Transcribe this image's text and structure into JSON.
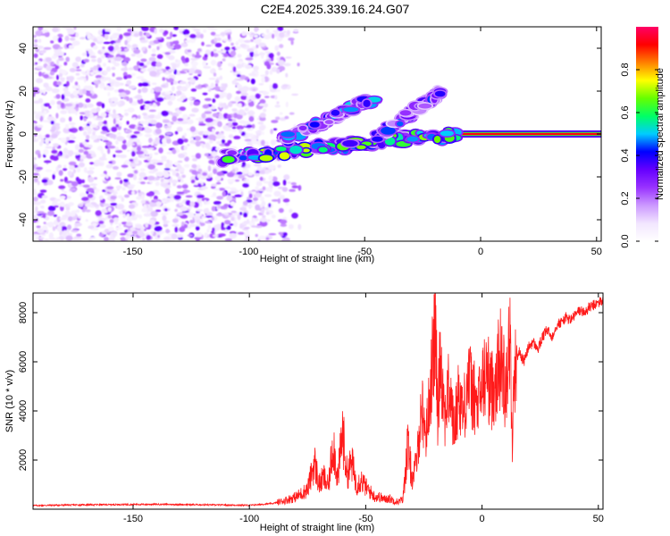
{
  "title": "C2E4.2025.339.16.24.G07",
  "colors": {
    "snr_line": "#ff1a1a",
    "axes": "#000000",
    "background": "#ffffff"
  },
  "chart_data": [
    {
      "type": "heatmap",
      "name": "spectrogram",
      "xlabel": "Height of straight line (km)",
      "ylabel": "Frequency (Hz)",
      "xlim": [
        -193,
        52
      ],
      "ylim": [
        -50,
        50
      ],
      "xticks": [
        -150,
        -100,
        -50,
        0,
        50
      ],
      "yticks": [
        -40,
        -20,
        0,
        20,
        40
      ],
      "x_tick_labels": [
        "-150",
        "-100",
        "-50",
        "0",
        "50"
      ],
      "y_tick_labels": [
        "-40",
        "-20",
        "0",
        "20",
        "40"
      ],
      "colorbar": {
        "label": "Normalized spectral amplitude",
        "range": [
          0,
          1
        ],
        "ticks": [
          0.0,
          0.2,
          0.4,
          0.6,
          0.8
        ],
        "tick_labels": [
          "0.0",
          "0.2",
          "0.4",
          "0.6",
          "0.8"
        ],
        "colormap": [
          "#ffffff",
          "#f2e6ff",
          "#cc99ff",
          "#9933ff",
          "#6600ff",
          "#0000ff",
          "#00ccff",
          "#00ff66",
          "#66ff00",
          "#ffff00",
          "#ff8000",
          "#ff0000",
          "#ff0066"
        ]
      },
      "noise_region_x": [
        -193,
        -85
      ],
      "features": [
        {
          "name": "carrier-line",
          "x": [
            -10,
            52
          ],
          "y": [
            0,
            0
          ],
          "amplitude": 1.0
        },
        {
          "name": "central-track",
          "x": [
            -113,
            -10
          ],
          "y": [
            -11,
            0
          ],
          "amplitude": 0.55
        },
        {
          "name": "upper-track-1",
          "x": [
            -85,
            -45
          ],
          "y": [
            -3,
            17
          ],
          "amplitude": 0.45
        },
        {
          "name": "upper-track-2",
          "x": [
            -45,
            -17
          ],
          "y": [
            -2,
            20
          ],
          "amplitude": 0.4
        }
      ]
    },
    {
      "type": "line",
      "name": "snr",
      "xlabel": "Height of straight line (km)",
      "ylabel": "SNR (10 * v/v)",
      "xlim": [
        -193,
        52
      ],
      "ylim": [
        0,
        8800
      ],
      "xticks": [
        -150,
        -100,
        -50,
        0,
        50
      ],
      "yticks": [
        2000,
        4000,
        6000,
        8000
      ],
      "x_tick_labels": [
        "-150",
        "-100",
        "-50",
        "0",
        "50"
      ],
      "y_tick_labels": [
        "2000",
        "4000",
        "6000",
        "8000"
      ],
      "series": [
        {
          "name": "SNR",
          "x": [
            -193,
            -170,
            -140,
            -120,
            -100,
            -90,
            -85,
            -80,
            -75,
            -72,
            -70,
            -68,
            -66,
            -64,
            -62,
            -60,
            -58,
            -56,
            -54,
            -52,
            -50,
            -48,
            -46,
            -44,
            -42,
            -40,
            -38,
            -36,
            -34,
            -32,
            -30,
            -28,
            -26,
            -24,
            -22,
            -20,
            -19,
            -18,
            -16,
            -14,
            -12,
            -10,
            -8,
            -6,
            -4,
            -2,
            0,
            2,
            4,
            6,
            8,
            10,
            12,
            13,
            14,
            16,
            18,
            20,
            22,
            24,
            26,
            28,
            30,
            32,
            34,
            36,
            38,
            40,
            42,
            44,
            46,
            48,
            50,
            52
          ],
          "y": [
            150,
            180,
            200,
            180,
            160,
            230,
            350,
            500,
            800,
            1900,
            1000,
            1300,
            900,
            2800,
            1200,
            3200,
            1400,
            1900,
            1000,
            1200,
            900,
            700,
            500,
            500,
            400,
            450,
            350,
            300,
            400,
            2600,
            1200,
            2000,
            4200,
            3000,
            5200,
            7400,
            3500,
            6600,
            3800,
            5000,
            3200,
            4800,
            3900,
            5400,
            4700,
            4100,
            5000,
            5600,
            4800,
            5400,
            6200,
            5000,
            7000,
            2500,
            6000,
            6400,
            6000,
            6600,
            6800,
            6500,
            7000,
            7300,
            7000,
            7500,
            7600,
            7800,
            7700,
            7900,
            8100,
            8000,
            8200,
            8300,
            8400,
            8500
          ]
        }
      ]
    }
  ]
}
